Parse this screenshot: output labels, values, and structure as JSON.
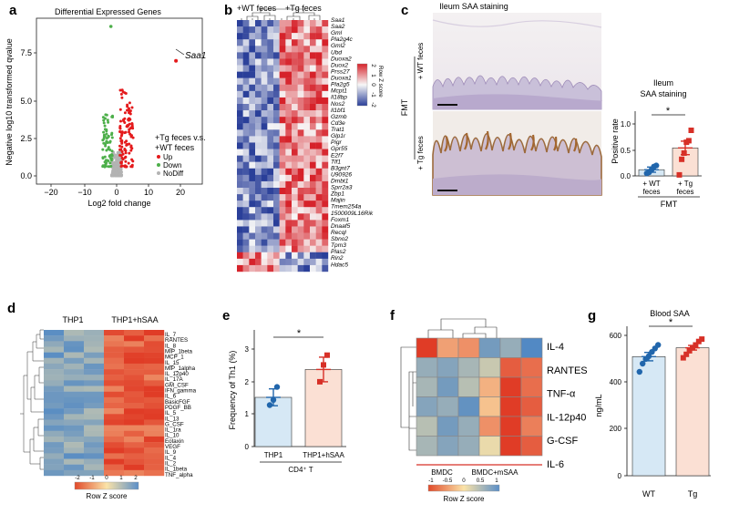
{
  "panels": {
    "a": {
      "letter": "a",
      "title": "Differential Expressed Genes",
      "xlabel": "Log2 fold change",
      "ylabel": "Negative log10 transformed qvalue",
      "xticks": [
        "−20",
        "−10",
        "0",
        "10",
        "20"
      ],
      "yticks": [
        "0.0",
        "2.5",
        "5.0",
        "7.5"
      ],
      "highlight_gene": "Saa1",
      "legend_title_1": "+Tg feces v.s.",
      "legend_title_2": "+WT feces",
      "legend": [
        {
          "label": "Up",
          "color": "#e41a1c"
        },
        {
          "label": "Down",
          "color": "#4daf4a"
        },
        {
          "label": "NoDiff",
          "color": "#b3b3b3"
        }
      ]
    },
    "b": {
      "letter": "b",
      "col_label_wt": "+WT feces",
      "col_label_tg": "+Tg feces",
      "genes": [
        "Saa1",
        "Saa2",
        "Gml",
        "Pla2g4c",
        "Gml2",
        "Ubd",
        "Duoxa2",
        "Duox2",
        "Prss27",
        "Duoxa1",
        "Pla2g5",
        "Mcpt1",
        "Il18bp",
        "Nos2",
        "Il1bf1",
        "Gzmb",
        "Cd3e",
        "Trat1",
        "Glp1r",
        "Pigr",
        "Gpr55",
        "E2f7",
        "Tlf1",
        "B3gnt7",
        "U90926",
        "Dmbt1",
        "Sprr2a3",
        "Zbp1",
        "Majin",
        "Tmem254a",
        "1500009L16Rik",
        "Foxm1",
        "Dnaaf5",
        "Recql",
        "Sbno2",
        "Tpm3",
        "Plas2",
        "Rin2",
        "Hdac5"
      ],
      "scale_title": "Row Z score",
      "scale_ticks": [
        "2",
        "1",
        "0",
        "-1",
        "-2"
      ]
    },
    "c": {
      "letter": "c",
      "title": "Ileum SAA staining",
      "row_labels": [
        "+ WT feces",
        "+ Tg feces"
      ],
      "group_label": "FMT",
      "bar_title_1": "Ileum",
      "bar_title_2": "SAA staining",
      "ylabel": "Positive rate",
      "yticks": [
        "0.0",
        "0.5",
        "1.0"
      ],
      "groups_line1": [
        "+ WT",
        "+ Tg"
      ],
      "groups_line2": [
        "feces",
        "feces"
      ],
      "xgroup": "FMT",
      "sig": "*"
    },
    "d": {
      "letter": "d",
      "col_label_1": "THP1",
      "col_label_2": "THP1+hSAA",
      "genes": [
        "IL_7",
        "RANTES",
        "IL_8",
        "MIP_1beta",
        "MCP_1",
        "IL_15",
        "MIP_1alpha",
        "IL_12p40",
        "IL_17A",
        "GM_CSF",
        "IFN_gamma",
        "IL_6",
        "BasicFGF",
        "PDGF_BB",
        "IL_5",
        "IL_13",
        "G_CSF",
        "IL_1ra",
        "IL_10",
        "Eotaxin",
        "VEGF",
        "IL_9",
        "IL_4",
        "IL_2",
        "IL_1beta",
        "TNF_alpha"
      ],
      "scale_title": "Row Z score",
      "scale_ticks": [
        "-2",
        "-1",
        "0",
        "1",
        "2"
      ]
    },
    "e": {
      "letter": "e",
      "ylabel": "Frequency of Th1 (%)",
      "yticks": [
        "0",
        "1",
        "2",
        "3"
      ],
      "groups": [
        "THP1",
        "THP1+hSAA"
      ],
      "xgroup": "CD4⁺ T",
      "sig": "*"
    },
    "f": {
      "letter": "f",
      "genes": [
        "IL-4",
        "RANTES",
        "TNF-α",
        "IL-12p40",
        "G-CSF",
        "IL-6"
      ],
      "col_label_1": "BMDC",
      "col_label_2": "BMDC+mSAA",
      "scale_title": "Row Z score",
      "scale_ticks": [
        "-1",
        "-0.5",
        "0",
        "0.5",
        "1"
      ]
    },
    "g": {
      "letter": "g",
      "title": "Blood SAA",
      "ylabel": "ng/mL",
      "yticks": [
        "0",
        "200",
        "400",
        "600"
      ],
      "groups": [
        "WT",
        "Tg"
      ],
      "sig": "*"
    }
  },
  "chart_data": [
    {
      "panel": "c",
      "type": "bar",
      "categories": [
        "+ WT feces",
        "+ Tg feces"
      ],
      "values": [
        0.12,
        0.54
      ],
      "errors": [
        0.05,
        0.13
      ],
      "points": [
        [
          0.05,
          0.07,
          0.12,
          0.18,
          0.2
        ],
        [
          0.02,
          0.32,
          0.44,
          0.65,
          0.68,
          0.88
        ]
      ],
      "colors": [
        "#2166ac",
        "#d73027"
      ],
      "ylim": [
        0,
        1.25
      ]
    },
    {
      "panel": "e",
      "type": "bar",
      "categories": [
        "THP1",
        "THP1+hSAA"
      ],
      "values": [
        1.52,
        2.38
      ],
      "errors": [
        0.26,
        0.38
      ],
      "points": [
        [
          1.28,
          1.44,
          1.84
        ],
        [
          2.0,
          2.52,
          2.82
        ]
      ],
      "colors": [
        "#2166ac",
        "#d73027"
      ],
      "ylim": [
        0,
        3.6
      ]
    },
    {
      "panel": "g",
      "type": "bar",
      "categories": [
        "WT",
        "Tg"
      ],
      "values": [
        510,
        548
      ],
      "errors": [
        18,
        10
      ],
      "points": [
        [
          445,
          480,
          500,
          512,
          530,
          545,
          560
        ],
        [
          505,
          520,
          535,
          548,
          560,
          575,
          585
        ]
      ],
      "colors": [
        "#2166ac",
        "#d73027"
      ],
      "ylim": [
        0,
        640
      ]
    }
  ]
}
